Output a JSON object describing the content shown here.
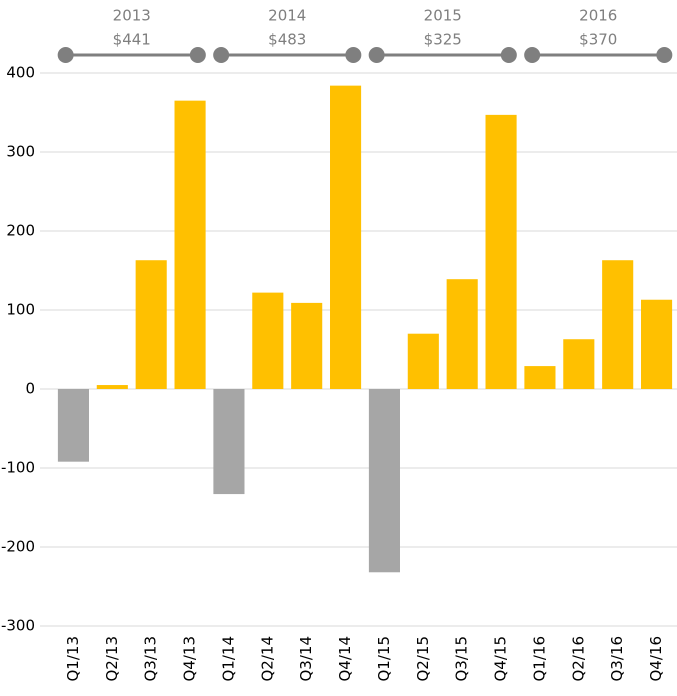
{
  "chart_data": {
    "type": "bar",
    "categories": [
      "Q1/13",
      "Q2/13",
      "Q3/13",
      "Q4/13",
      "Q1/14",
      "Q2/14",
      "Q3/14",
      "Q4/14",
      "Q1/15",
      "Q2/15",
      "Q3/15",
      "Q4/15",
      "Q1/16",
      "Q2/16",
      "Q3/16",
      "Q4/16"
    ],
    "values": [
      -92,
      5,
      163,
      365,
      -133,
      122,
      109,
      384,
      -232,
      70,
      139,
      347,
      29,
      63,
      163,
      113
    ],
    "color_positive": "#ffc000",
    "color_negative": "#a6a6a6",
    "ylim": [
      -300,
      400
    ],
    "yticks": [
      -300,
      -200,
      -100,
      0,
      100,
      200,
      300,
      400
    ],
    "grid": true,
    "groups": [
      {
        "label": "2013",
        "total": 441,
        "total_label": "$441"
      },
      {
        "label": "2014",
        "total": 483,
        "total_label": "$483"
      },
      {
        "label": "2015",
        "total": 325,
        "total_label": "$325"
      },
      {
        "label": "2016",
        "total": 370,
        "total_label": "$370"
      }
    ]
  }
}
